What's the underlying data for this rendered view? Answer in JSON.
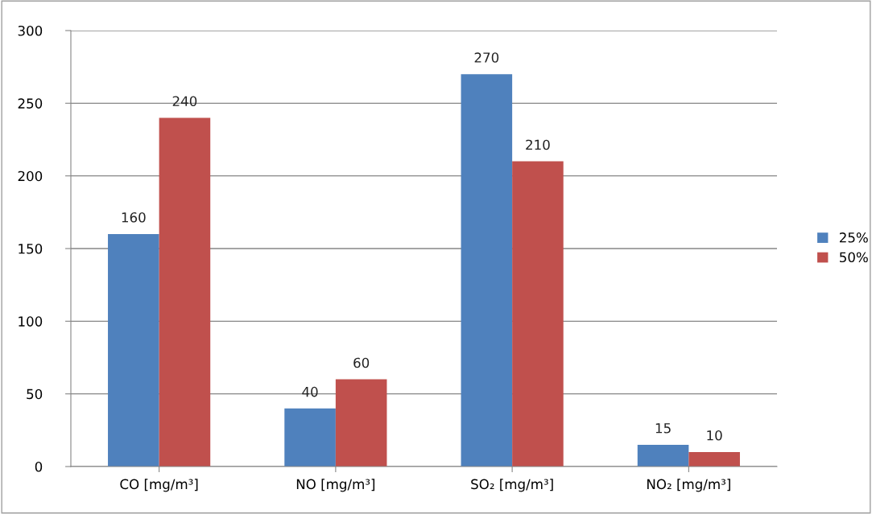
{
  "chart_data": {
    "type": "bar",
    "categories": [
      "CO [mg/m³]",
      "NO [mg/m³]",
      "SO₂ [mg/m³]",
      "NO₂ [mg/m³]"
    ],
    "series": [
      {
        "name": "25%",
        "color": "#4f81bd",
        "values": [
          160,
          40,
          270,
          15
        ]
      },
      {
        "name": "50%",
        "color": "#c0504d",
        "values": [
          240,
          60,
          210,
          10
        ]
      }
    ],
    "ylim": [
      0,
      300
    ],
    "yticks": [
      0,
      50,
      100,
      150,
      200,
      250,
      300
    ],
    "grid": "y",
    "legend": "right",
    "data_labels": true
  }
}
